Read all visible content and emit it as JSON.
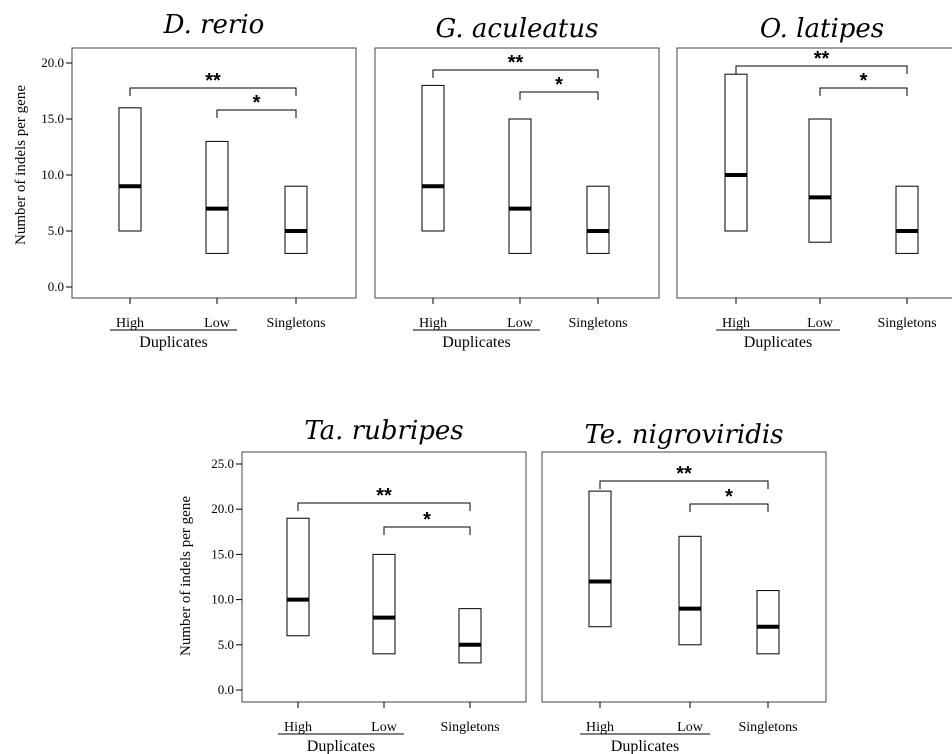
{
  "chart_data": [
    {
      "type": "box",
      "title": "D. rerio",
      "ylabel": "Number of indels per gene",
      "ylim": [
        0,
        20
      ],
      "yticks": [
        "0.0",
        "5.0",
        "10.0",
        "15.0",
        "20.0"
      ],
      "categories": [
        "High",
        "Low",
        "Singletons"
      ],
      "group_label": "Duplicates",
      "boxes": [
        {
          "low": 5,
          "median": 9,
          "high": 16
        },
        {
          "low": 3,
          "median": 7,
          "high": 13
        },
        {
          "low": 3,
          "median": 5,
          "high": 9
        }
      ],
      "significance": [
        "**",
        "*"
      ]
    },
    {
      "type": "box",
      "title": "G. aculeatus",
      "ylabel": "",
      "ylim": [
        0,
        20
      ],
      "yticks": [],
      "categories": [
        "High",
        "Low",
        "Singletons"
      ],
      "group_label": "Duplicates",
      "boxes": [
        {
          "low": 5,
          "median": 9,
          "high": 18
        },
        {
          "low": 3,
          "median": 7,
          "high": 15
        },
        {
          "low": 3,
          "median": 5,
          "high": 9
        }
      ],
      "significance": [
        "**",
        "*"
      ]
    },
    {
      "type": "box",
      "title": "O. latipes",
      "ylabel": "",
      "ylim": [
        0,
        20
      ],
      "yticks": [],
      "categories": [
        "High",
        "Low",
        "Singletons"
      ],
      "group_label": "Duplicates",
      "boxes": [
        {
          "low": 5,
          "median": 10,
          "high": 19
        },
        {
          "low": 4,
          "median": 8,
          "high": 15
        },
        {
          "low": 3,
          "median": 5,
          "high": 9
        }
      ],
      "significance": [
        "**",
        "*"
      ]
    },
    {
      "type": "box",
      "title": "Ta. rubripes",
      "ylabel": "Number of indels per gene",
      "ylim": [
        0,
        25
      ],
      "yticks": [
        "0.0",
        "5.0",
        "10.0",
        "15.0",
        "20.0",
        "25.0"
      ],
      "categories": [
        "High",
        "Low",
        "Singletons"
      ],
      "group_label": "Duplicates",
      "boxes": [
        {
          "low": 6,
          "median": 10,
          "high": 19
        },
        {
          "low": 4,
          "median": 8,
          "high": 15
        },
        {
          "low": 3,
          "median": 5,
          "high": 9
        }
      ],
      "significance": [
        "**",
        "*"
      ]
    },
    {
      "type": "box",
      "title": "Te. nigroviridis",
      "ylabel": "",
      "ylim": [
        0,
        25
      ],
      "yticks": [],
      "categories": [
        "High",
        "Low",
        "Singletons"
      ],
      "group_label": "Duplicates",
      "boxes": [
        {
          "low": 7,
          "median": 12,
          "high": 22
        },
        {
          "low": 5,
          "median": 9,
          "high": 17
        },
        {
          "low": 4,
          "median": 7,
          "high": 11
        }
      ],
      "significance": [
        "**",
        "*"
      ]
    }
  ]
}
